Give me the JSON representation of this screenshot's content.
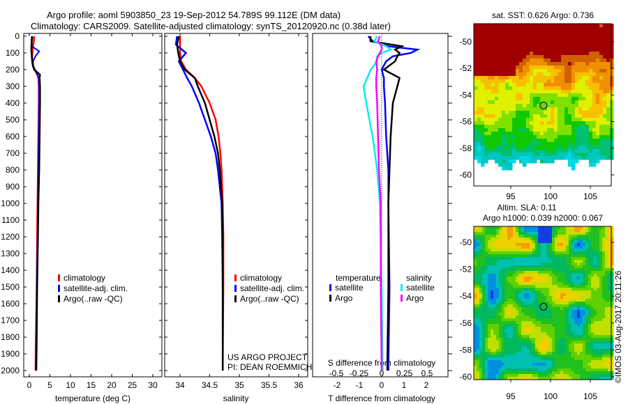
{
  "title_line1": "Argo profile: aoml 5903850_23 19-Sep-2012 54.789S 99.112E (DM data)",
  "title_line2": "Climatology: CARS2009. Satellite-adjusted climatology: synTS_20120920.nc (0.38d later)",
  "colors": {
    "climatology": "#ff0000",
    "satellite": "#0000ff",
    "argo": "#000000",
    "sal_satellite": "#00eeee",
    "sal_argo": "#ff00ff"
  },
  "chart_data": [
    {
      "type": "line",
      "name": "temperature",
      "xlabel": "temperature (deg C)",
      "xlim": [
        -1.5,
        31.5
      ],
      "ylim": [
        2040,
        0
      ],
      "xticks": [
        "0",
        "5",
        "10",
        "15",
        "20",
        "25",
        "30"
      ],
      "yticks": [
        "0",
        "100",
        "200",
        "300",
        "400",
        "500",
        "600",
        "700",
        "800",
        "900",
        "1000",
        "1100",
        "1200",
        "1300",
        "1400",
        "1500",
        "1600",
        "1700",
        "1800",
        "1900",
        "2000"
      ],
      "legend": [
        "climatology",
        "satellite-adj. clim.",
        "Argo(..raw -QC)"
      ],
      "depth": [
        0,
        30,
        60,
        90,
        120,
        150,
        180,
        200,
        230,
        250,
        300,
        400,
        600,
        800,
        1000,
        1200,
        1500,
        1800,
        2000
      ],
      "series": [
        {
          "name": "climatology",
          "values": [
            1.2,
            1.1,
            0.9,
            0.8,
            0.7,
            0.7,
            0.9,
            1.3,
            1.9,
            2.2,
            2.3,
            2.3,
            2.2,
            2.1,
            2.0,
            1.9,
            1.8,
            1.6,
            1.5
          ]
        },
        {
          "name": "satellite-adj. clim.",
          "values": [
            0.6,
            0.5,
            0.6,
            2.4,
            1.5,
            0.9,
            1.0,
            1.4,
            2.0,
            2.3,
            2.4,
            2.4,
            2.3,
            2.2,
            2.1,
            2.0,
            1.8,
            1.7,
            1.6
          ]
        },
        {
          "name": "Argo",
          "values": [
            0.7,
            0.6,
            0.5,
            0.5,
            0.6,
            0.7,
            0.9,
            1.2,
            2.6,
            2.5,
            2.6,
            2.6,
            2.5,
            2.4,
            2.2,
            2.1,
            1.9,
            1.8,
            1.7
          ]
        }
      ]
    },
    {
      "type": "line",
      "name": "salinity",
      "xlabel": "salinity",
      "xlim": [
        33.76,
        36.1
      ],
      "ylim": [
        2040,
        0
      ],
      "xticks": [
        "34",
        "34.5",
        "35",
        "35.5",
        "36"
      ],
      "legend": [
        "climatology",
        "satellite-adj. clim.",
        "Argo(..raw -QC)"
      ],
      "annotation": [
        "US ARGO PROJECT",
        "PI: DEAN ROEMMICH"
      ],
      "depth": [
        0,
        50,
        100,
        150,
        200,
        250,
        300,
        400,
        500,
        600,
        700,
        800,
        1000,
        1200,
        1500,
        2000
      ],
      "series": [
        {
          "name": "climatology",
          "values": [
            34.0,
            34.0,
            34.0,
            34.02,
            34.1,
            34.25,
            34.36,
            34.5,
            34.6,
            34.65,
            34.68,
            34.7,
            34.72,
            34.73,
            34.73,
            34.72
          ]
        },
        {
          "name": "satellite-adj. clim.",
          "values": [
            33.95,
            33.93,
            34.1,
            33.98,
            34.05,
            34.12,
            34.2,
            34.32,
            34.42,
            34.52,
            34.6,
            34.64,
            34.7,
            34.71,
            34.72,
            34.72
          ]
        },
        {
          "name": "Argo",
          "values": [
            33.98,
            33.95,
            33.97,
            34.0,
            34.08,
            34.25,
            34.3,
            34.42,
            34.5,
            34.58,
            34.64,
            34.67,
            34.71,
            34.72,
            34.72,
            34.72
          ]
        }
      ]
    },
    {
      "type": "line",
      "name": "difference",
      "xlabel": "T difference from climatology",
      "x2label": "S difference from climatology",
      "xlim": [
        -3,
        3
      ],
      "x2lim": [
        -0.75,
        0.75
      ],
      "ylim": [
        2040,
        0
      ],
      "xticks": [
        "-2",
        "-1",
        "0",
        "1",
        "2"
      ],
      "x2ticks": [
        "-0.5",
        "-0.25",
        "0",
        "0.25",
        "0.5"
      ],
      "legend": {
        "temperature_title": "temperature",
        "salinity_title": "salinity",
        "items": [
          "satellite",
          "Argo",
          "satellite",
          "Argo"
        ]
      },
      "depth": [
        0,
        30,
        60,
        80,
        100,
        120,
        150,
        200,
        250,
        300,
        400,
        600,
        800,
        1000,
        1500,
        2000
      ],
      "series": [
        {
          "name": "T satellite",
          "values": [
            -0.6,
            -0.4,
            0.3,
            1.6,
            1.3,
            0.5,
            0.2,
            0.0,
            0.1,
            0.1,
            0.15,
            0.2,
            0.3,
            0.3,
            0.35,
            0.3
          ]
        },
        {
          "name": "T Argo",
          "values": [
            -0.5,
            -0.5,
            0.9,
            0.6,
            0.8,
            0.7,
            0.6,
            0.1,
            0.8,
            0.7,
            0.5,
            0.4,
            0.35,
            0.3,
            0.3,
            0.25
          ]
        },
        {
          "name": "S satellite",
          "values": [
            -0.05,
            -0.08,
            0.05,
            0.1,
            0.0,
            -0.05,
            -0.05,
            -0.12,
            -0.16,
            -0.2,
            -0.17,
            -0.1,
            -0.05,
            -0.02,
            0.0,
            0.01
          ]
        },
        {
          "name": "S Argo",
          "values": [
            -0.02,
            -0.04,
            0.0,
            0.0,
            -0.02,
            -0.04,
            -0.06,
            -0.05,
            -0.06,
            -0.06,
            -0.05,
            -0.04,
            -0.03,
            -0.01,
            -0.01,
            0.0
          ]
        }
      ]
    },
    {
      "type": "heatmap",
      "name": "sst-map",
      "title": "sat. SST: 0.626 Argo: 0.736",
      "xticks": [
        "95",
        "100",
        "105"
      ],
      "yticks": [
        "-50",
        "-52",
        "-54",
        "-56",
        "-58",
        "-60"
      ],
      "float_position": {
        "lon": 99.112,
        "lat": -54.789
      }
    },
    {
      "type": "heatmap",
      "name": "sla-map",
      "title_line1": "Altim. SLA: 0.11",
      "title_line2": "Argo h1000: 0.039 h2000: 0.067",
      "xticks": [
        "95",
        "100",
        "105"
      ],
      "yticks": [
        "-50",
        "-52",
        "-54",
        "-56",
        "-58",
        "-60"
      ],
      "float_position": {
        "lon": 99.112,
        "lat": -54.789
      }
    }
  ],
  "watermark": "©IMOS 03-Aug-2017 20:11:26"
}
